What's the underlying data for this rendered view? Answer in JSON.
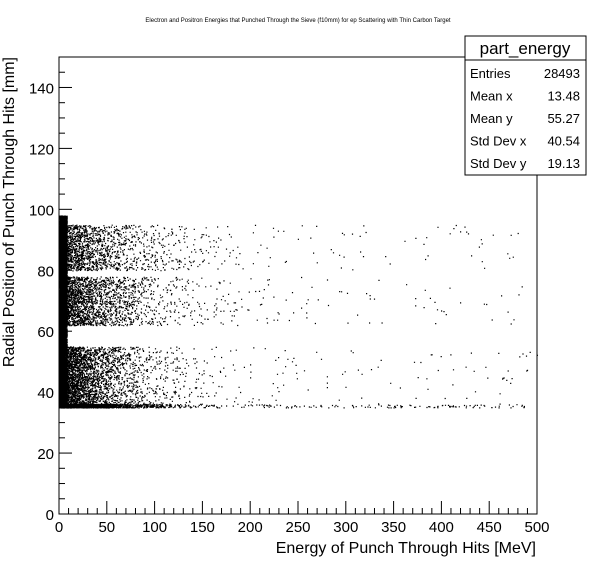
{
  "chart_data": {
    "type": "scatter",
    "title": "Electron and Positron Energies that Punched Through the Sieve (f10mm) for ep Scattering with Thin Carbon Target",
    "xlabel": "Energy of Punch Through Hits [MeV]",
    "ylabel": "Radial Position of Punch Through Hits [mm]",
    "xlim": [
      0,
      500
    ],
    "ylim": [
      0,
      150
    ],
    "x_ticks": [
      "0",
      "50",
      "100",
      "150",
      "200",
      "250",
      "300",
      "350",
      "400",
      "450",
      "500"
    ],
    "y_ticks": [
      "0",
      "20",
      "40",
      "60",
      "80",
      "100",
      "120",
      "140"
    ],
    "grid": false,
    "marker_color": "#000000",
    "stats_box": {
      "name": "part_energy",
      "rows": [
        {
          "label": "Entries",
          "value": "28493"
        },
        {
          "label": "Mean x",
          "value": "13.48"
        },
        {
          "label": "Mean y",
          "value": "55.27"
        },
        {
          "label": "Std Dev x",
          "value": "40.54"
        },
        {
          "label": "Std Dev y",
          "value": "19.13"
        }
      ]
    },
    "series": [
      {
        "entries": 28493,
        "mean_x": 13.48,
        "mean_y": 55.27,
        "std_x": 40.54,
        "std_y": 19.13,
        "bands": [
          {
            "y_range": [
              35,
              36
            ],
            "x_max": 490
          },
          {
            "y_range": [
              36,
              55
            ],
            "x_max": 500
          },
          {
            "y_range": [
              62,
              78
            ],
            "x_max": 490
          },
          {
            "y_range": [
              80,
              95
            ],
            "x_max": 480
          },
          {
            "y_range": [
              35,
              98
            ],
            "x_max": 8
          }
        ]
      }
    ]
  }
}
